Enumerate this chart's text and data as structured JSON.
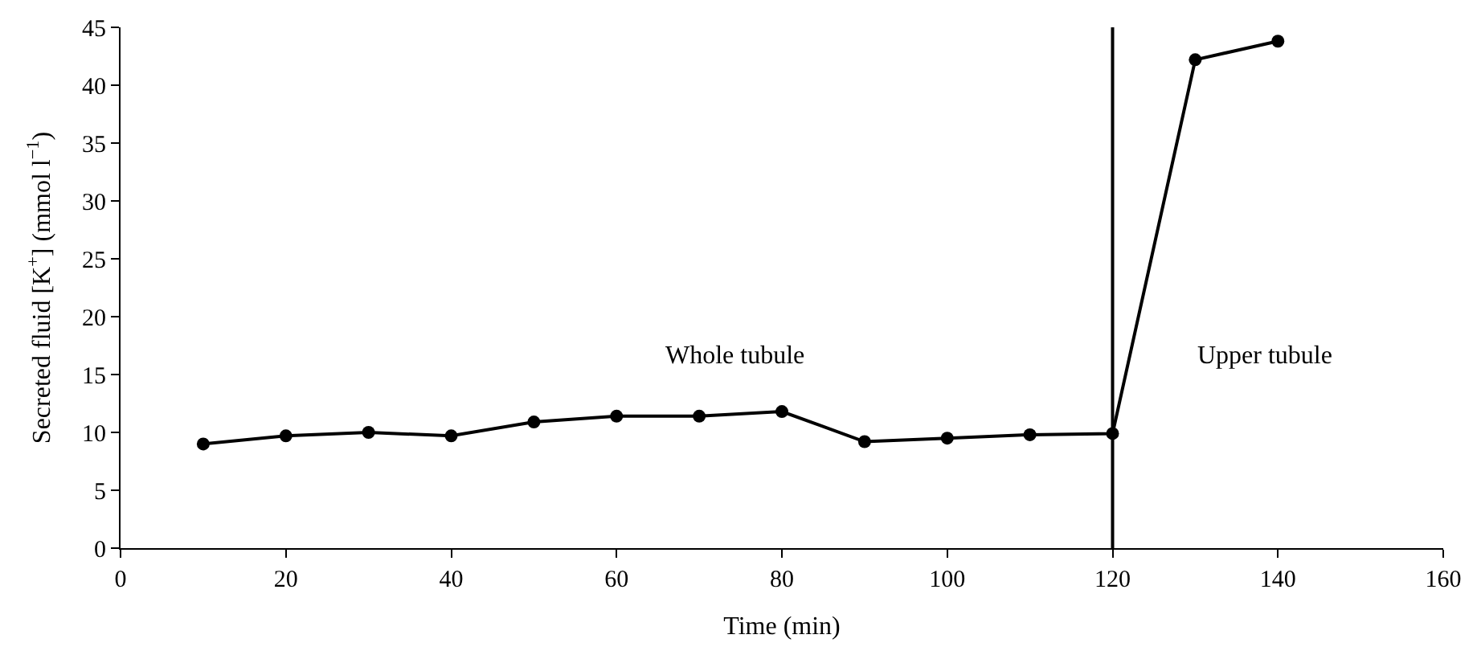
{
  "chart_data": {
    "type": "line",
    "xlabel": "Time (min)",
    "ylabel": "Secreted fluid [K$^{+}$] (mmol l$^{−1}$)",
    "x": [
      10,
      20,
      30,
      40,
      50,
      60,
      70,
      80,
      90,
      100,
      110,
      120,
      130,
      140
    ],
    "series": [
      {
        "color": "#000000",
        "values": [
          9.0,
          9.7,
          10.0,
          9.7,
          10.9,
          11.4,
          11.4,
          11.8,
          9.2,
          9.5,
          9.8,
          9.9,
          42.2,
          43.8
        ]
      }
    ],
    "xlim": [
      0,
      160
    ],
    "xticks": [
      0,
      20,
      40,
      60,
      80,
      100,
      120,
      140,
      160
    ],
    "ylim": [
      0,
      45
    ],
    "yticks": [
      0,
      5,
      10,
      15,
      20,
      25,
      30,
      35,
      40,
      45
    ],
    "ref_lines": [
      {
        "axis": "x",
        "value": 120,
        "color": "#000000"
      }
    ],
    "annotations": [
      "Whole tubule",
      "Upper tubule"
    ],
    "marker": "circle",
    "line_style": "solid"
  }
}
